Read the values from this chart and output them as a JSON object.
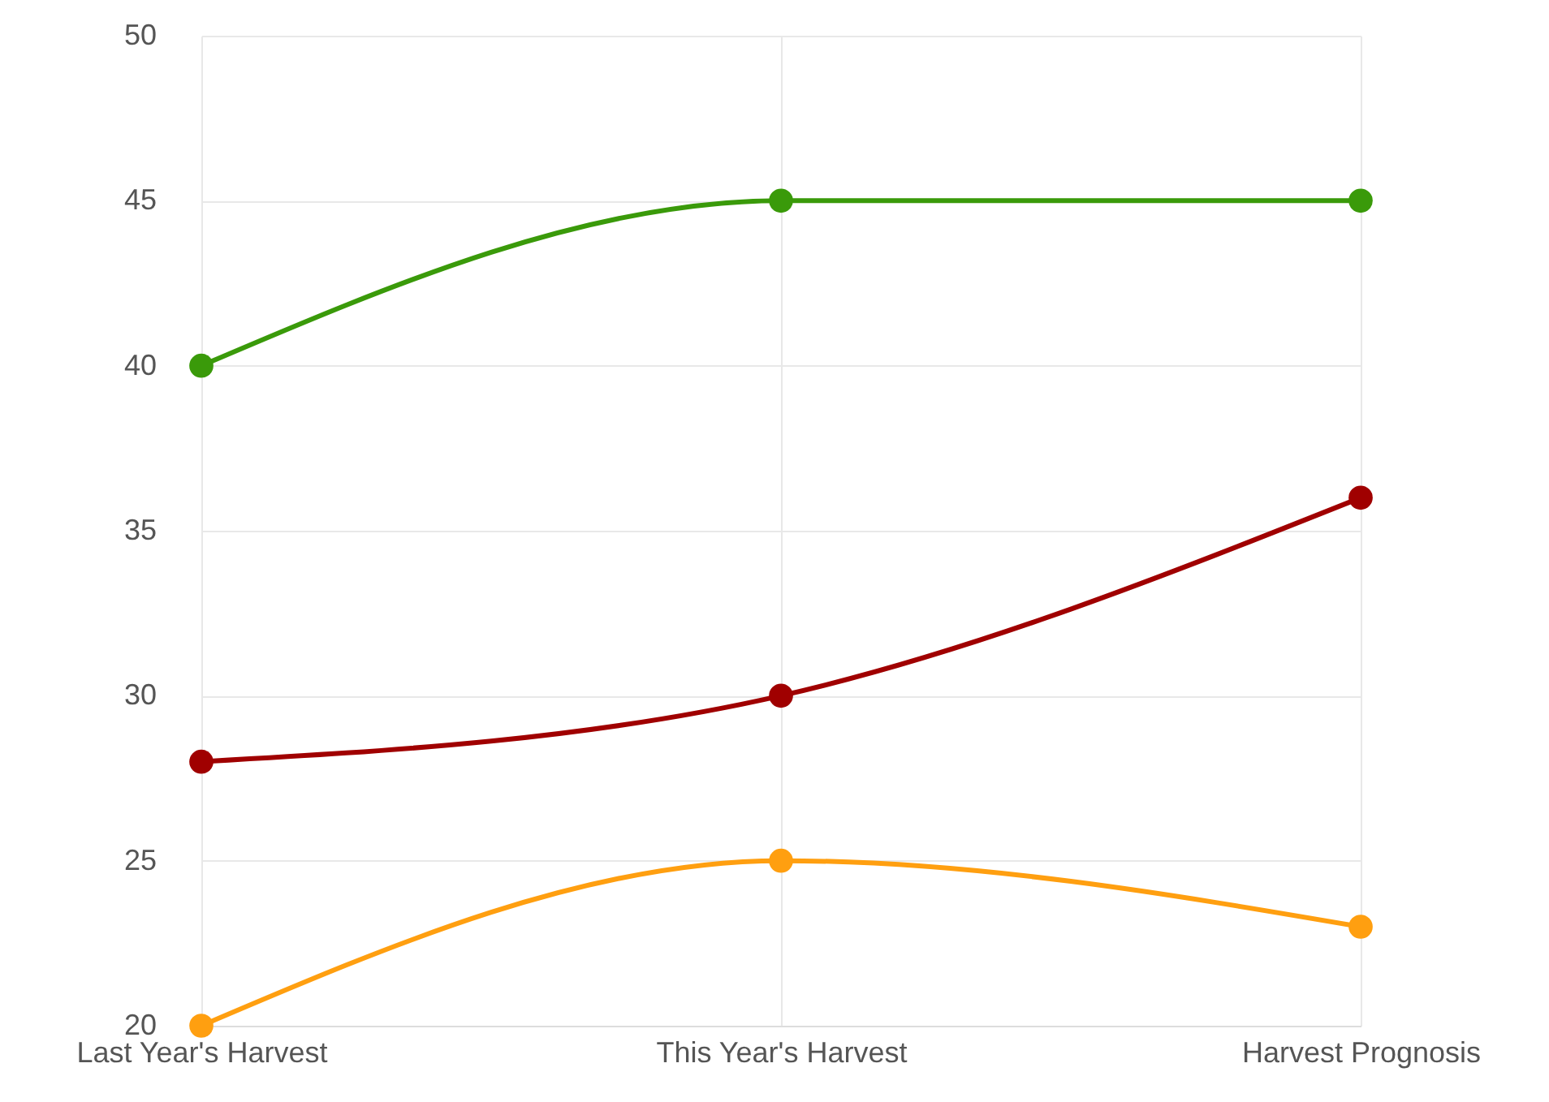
{
  "chart_data": {
    "type": "line",
    "categories": [
      "Last Year's Harvest",
      "This Year's Harvest",
      "Harvest Prognosis"
    ],
    "series": [
      {
        "color": "#3a9a0a",
        "values": [
          40,
          45,
          45
        ]
      },
      {
        "color": "#a00000",
        "values": [
          28,
          30,
          36
        ]
      },
      {
        "color": "#ff9f10",
        "values": [
          20,
          25,
          23
        ]
      }
    ],
    "ylim": [
      20,
      50
    ],
    "yticks": [
      20,
      25,
      30,
      35,
      40,
      45,
      50
    ],
    "grid": true,
    "marker": "circle"
  }
}
